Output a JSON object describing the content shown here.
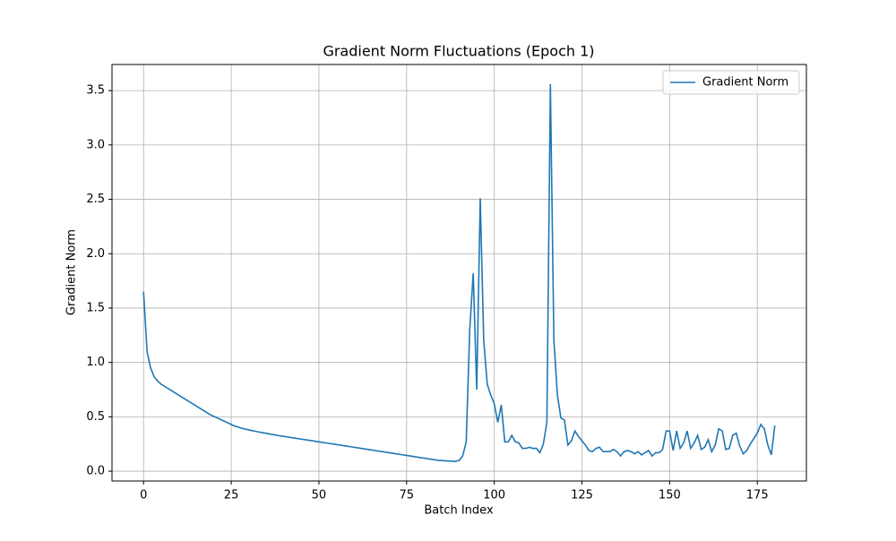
{
  "chart_data": {
    "type": "line",
    "title": "Gradient Norm Fluctuations (Epoch 1)",
    "x_label": "Batch Index",
    "y_label": "Gradient Norm",
    "x": [
      0,
      1,
      2,
      3,
      4,
      5,
      6,
      7,
      8,
      9,
      10,
      11,
      12,
      13,
      14,
      15,
      16,
      17,
      18,
      19,
      20,
      21,
      22,
      23,
      24,
      25,
      26,
      27,
      28,
      29,
      30,
      31,
      32,
      33,
      34,
      35,
      36,
      37,
      38,
      39,
      40,
      41,
      42,
      43,
      44,
      45,
      46,
      47,
      48,
      49,
      50,
      51,
      52,
      53,
      54,
      55,
      56,
      57,
      58,
      59,
      60,
      61,
      62,
      63,
      64,
      65,
      66,
      67,
      68,
      69,
      70,
      71,
      72,
      73,
      74,
      75,
      76,
      77,
      78,
      79,
      80,
      81,
      82,
      83,
      84,
      85,
      86,
      87,
      88,
      89,
      90,
      91,
      92,
      93,
      94,
      95,
      96,
      97,
      98,
      99,
      100,
      101,
      102,
      103,
      104,
      105,
      106,
      107,
      108,
      109,
      110,
      111,
      112,
      113,
      114,
      115,
      116,
      117,
      118,
      119,
      120,
      121,
      122,
      123,
      124,
      125,
      126,
      127,
      128,
      129,
      130,
      131,
      132,
      133,
      134,
      135,
      136,
      137,
      138,
      139,
      140,
      141,
      142,
      143,
      144,
      145,
      146,
      147,
      148,
      149,
      150,
      151,
      152,
      153,
      154,
      155,
      156,
      157,
      158,
      159,
      160,
      161,
      162,
      163,
      164,
      165,
      166,
      167,
      168,
      169,
      170,
      171,
      172,
      173,
      174,
      175,
      176,
      177,
      178,
      179,
      180
    ],
    "series": [
      {
        "name": "Gradient Norm",
        "color": "#1f77b4",
        "values": [
          1.65,
          1.1,
          0.95,
          0.87,
          0.83,
          0.8,
          0.78,
          0.76,
          0.74,
          0.72,
          0.7,
          0.68,
          0.66,
          0.64,
          0.62,
          0.6,
          0.58,
          0.56,
          0.54,
          0.52,
          0.505,
          0.49,
          0.475,
          0.46,
          0.445,
          0.43,
          0.415,
          0.405,
          0.395,
          0.387,
          0.38,
          0.373,
          0.366,
          0.36,
          0.354,
          0.348,
          0.342,
          0.336,
          0.33,
          0.325,
          0.32,
          0.315,
          0.31,
          0.305,
          0.3,
          0.295,
          0.29,
          0.285,
          0.28,
          0.275,
          0.27,
          0.265,
          0.26,
          0.255,
          0.25,
          0.245,
          0.24,
          0.235,
          0.23,
          0.225,
          0.22,
          0.215,
          0.21,
          0.205,
          0.2,
          0.195,
          0.19,
          0.185,
          0.18,
          0.175,
          0.17,
          0.165,
          0.16,
          0.155,
          0.15,
          0.145,
          0.14,
          0.135,
          0.13,
          0.125,
          0.12,
          0.115,
          0.11,
          0.105,
          0.1,
          0.098,
          0.096,
          0.094,
          0.092,
          0.09,
          0.1,
          0.14,
          0.27,
          1.3,
          1.82,
          0.75,
          2.51,
          1.2,
          0.8,
          0.7,
          0.62,
          0.45,
          0.61,
          0.27,
          0.27,
          0.33,
          0.27,
          0.26,
          0.21,
          0.21,
          0.22,
          0.21,
          0.21,
          0.17,
          0.25,
          0.45,
          3.56,
          1.2,
          0.7,
          0.49,
          0.47,
          0.24,
          0.28,
          0.37,
          0.32,
          0.28,
          0.24,
          0.19,
          0.18,
          0.21,
          0.22,
          0.18,
          0.18,
          0.18,
          0.2,
          0.18,
          0.14,
          0.18,
          0.19,
          0.18,
          0.16,
          0.18,
          0.15,
          0.17,
          0.19,
          0.14,
          0.17,
          0.17,
          0.2,
          0.37,
          0.37,
          0.19,
          0.37,
          0.21,
          0.26,
          0.37,
          0.21,
          0.26,
          0.33,
          0.2,
          0.22,
          0.29,
          0.18,
          0.24,
          0.39,
          0.37,
          0.2,
          0.21,
          0.33,
          0.35,
          0.23,
          0.16,
          0.19,
          0.25,
          0.3,
          0.35,
          0.43,
          0.39,
          0.24,
          0.15,
          0.42
        ]
      }
    ],
    "xlim": [
      -9,
      189
    ],
    "ylim": [
      -0.09,
      3.74
    ],
    "xticks": [
      0,
      25,
      50,
      75,
      100,
      125,
      150,
      175
    ],
    "yticks": [
      {
        "value": 0,
        "label": "0.0"
      },
      {
        "value": 0.5,
        "label": "0.5"
      },
      {
        "value": 1,
        "label": "1.0"
      },
      {
        "value": 1.5,
        "label": "1.5"
      },
      {
        "value": 2,
        "label": "2.0"
      },
      {
        "value": 2.5,
        "label": "2.5"
      },
      {
        "value": 3,
        "label": "3.0"
      },
      {
        "value": 3.5,
        "label": "3.5"
      }
    ],
    "grid": true,
    "legend": "upper-right"
  }
}
